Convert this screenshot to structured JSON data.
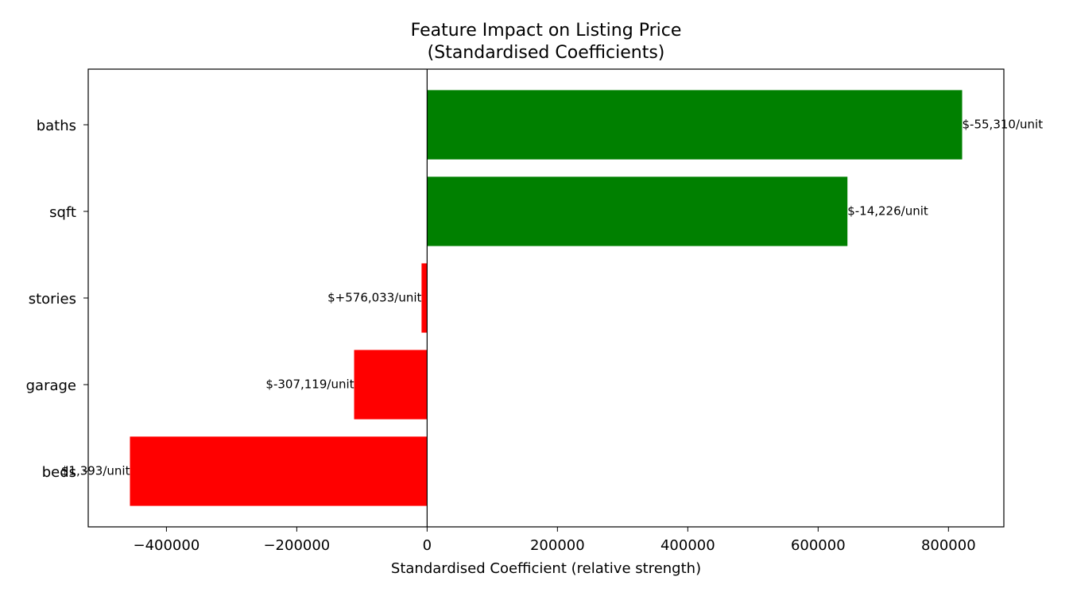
{
  "chart_data": {
    "type": "barh",
    "title": [
      "Feature Impact on Listing Price",
      "(Standardised Coefficients)"
    ],
    "x_label": "Standardised Coefficient (relative strength)",
    "categories": [
      "baths",
      "sqft",
      "stories",
      "garage",
      "beds"
    ],
    "values": [
      821000,
      645000,
      -8500,
      -112000,
      -456000
    ],
    "bar_annotations": [
      "$-55,310/unit",
      "$-14,226/unit",
      "$+576,033/unit",
      "$-307,119/unit",
      "$1,393/unit"
    ],
    "positive_color": "#008000",
    "negative_color": "#ff0000",
    "xlim": [
      -520000,
      885000
    ],
    "xticks": [
      {
        "value": -400000,
        "label": "−400000"
      },
      {
        "value": -200000,
        "label": "−200000"
      },
      0,
      200000,
      400000,
      600000,
      800000
    ],
    "zero_line": true
  }
}
